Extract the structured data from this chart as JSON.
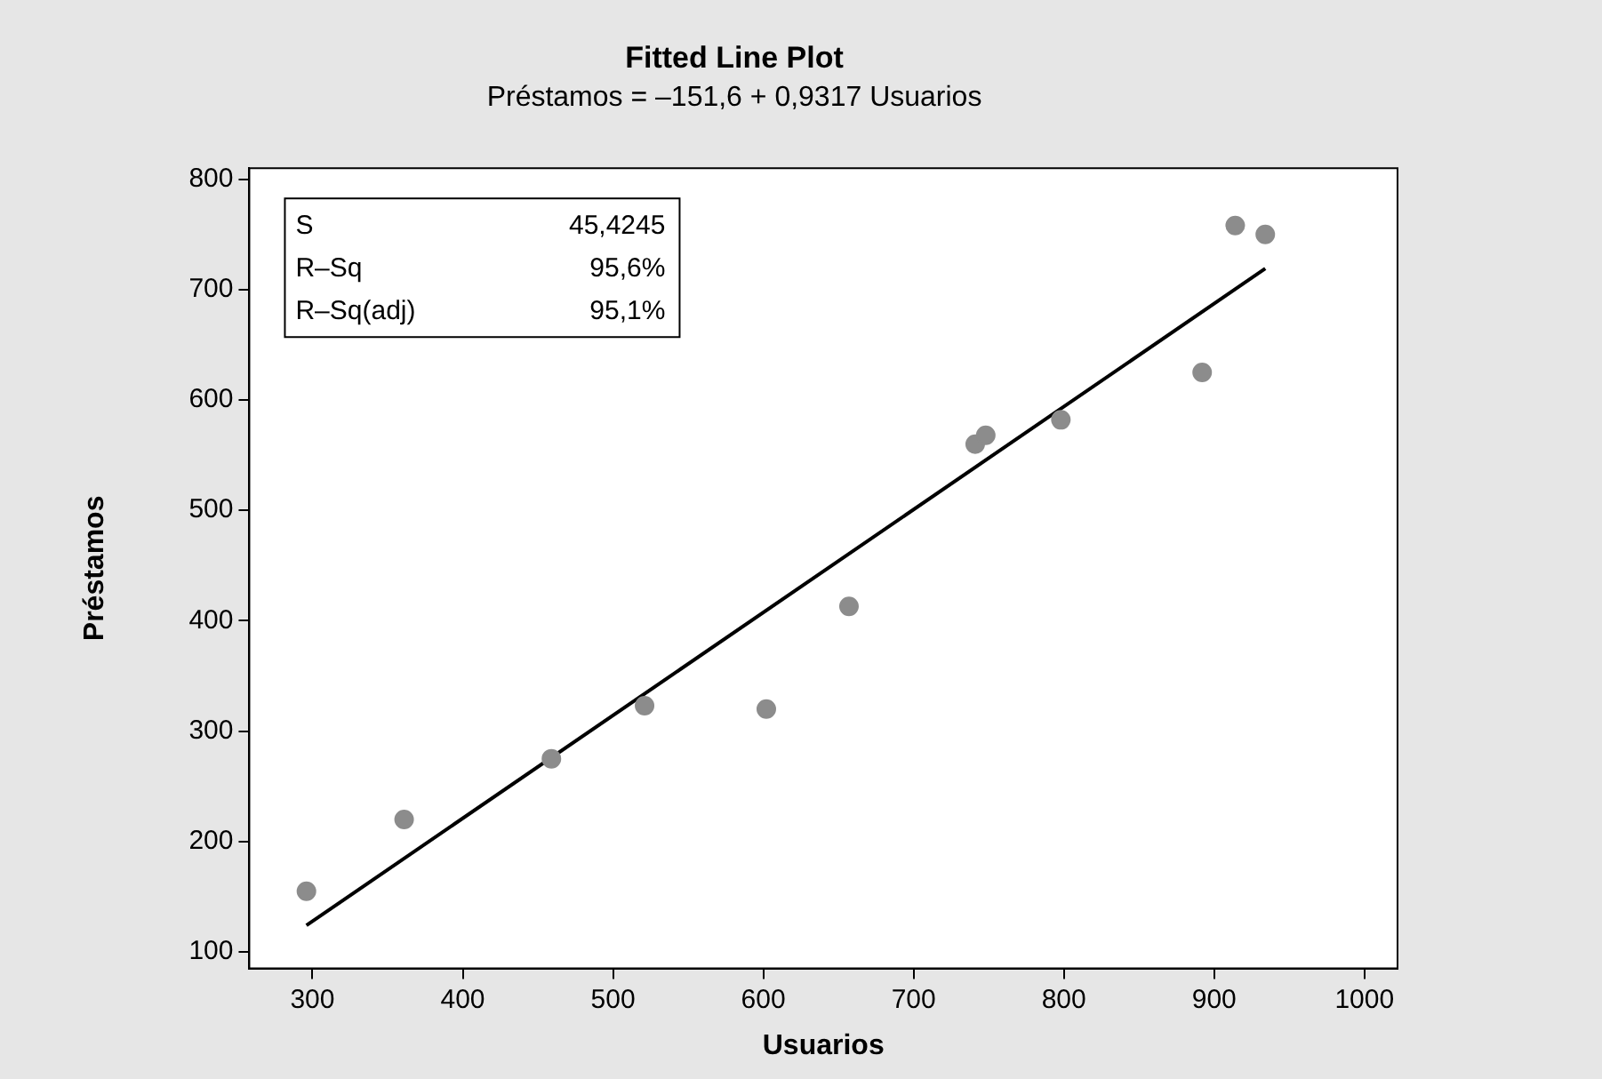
{
  "chart_data": {
    "type": "scatter",
    "title": "Fitted Line Plot",
    "subtitle": "Préstamos = –151,6 + 0,9317 Usuarios",
    "xlabel": "Usuarios",
    "ylabel": "Préstamos",
    "x": [
      296,
      361,
      459,
      521,
      602,
      657,
      741,
      748,
      798,
      892,
      914,
      934
    ],
    "series": [
      {
        "color": "#8c8c8c",
        "values": [
          155,
          220,
          275,
          323,
          320,
          413,
          560,
          568,
          582,
          625,
          758,
          750
        ]
      },
      {
        "type": "line",
        "marker": "none",
        "color": "#000000",
        "x": [
          296,
          934
        ],
        "values": [
          124,
          719
        ]
      }
    ],
    "xlim": [
      258,
      1022
    ],
    "xticks": [
      300,
      400,
      500,
      600,
      700,
      800,
      900,
      1000
    ],
    "ylim": [
      85,
      810
    ],
    "yticks": [
      100,
      200,
      300,
      400,
      500,
      600,
      700,
      800
    ],
    "annotations": [
      "S 45,4245",
      "R–Sq 95,6%",
      "R–Sq(adj) 95,1%"
    ],
    "grid": false,
    "legend": false,
    "marker": "circle",
    "line_style": "solid"
  }
}
